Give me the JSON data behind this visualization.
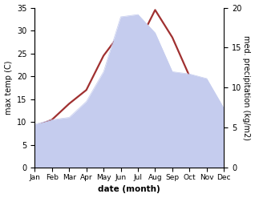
{
  "months": [
    "Jan",
    "Feb",
    "Mar",
    "Apr",
    "May",
    "Jun",
    "Jul",
    "Aug",
    "Sep",
    "Oct",
    "Nov",
    "Dec"
  ],
  "month_x": [
    1,
    2,
    3,
    4,
    5,
    6,
    7,
    8,
    9,
    10,
    11,
    12
  ],
  "temp": [
    9.0,
    10.5,
    14.0,
    17.0,
    24.5,
    29.5,
    27.0,
    34.5,
    28.5,
    20.0,
    12.0,
    8.0
  ],
  "precip": [
    9.5,
    10.5,
    11.0,
    14.5,
    21.0,
    33.0,
    33.5,
    29.5,
    21.0,
    20.5,
    19.5,
    13.0
  ],
  "temp_color": "#a03030",
  "precip_fill_color": "#c5ccee",
  "precip_edge_color": "#c5ccee",
  "left_ylabel": "max temp (C)",
  "right_ylabel": "med. precipitation (kg/m2)",
  "xlabel": "date (month)",
  "left_ylim": [
    0,
    35
  ],
  "right_ylim": [
    0,
    35
  ],
  "left_yticks": [
    0,
    5,
    10,
    15,
    20,
    25,
    30,
    35
  ],
  "right_yticks": [
    0,
    5,
    10,
    15,
    20
  ],
  "right_yticklabels": [
    "0",
    "5",
    "10",
    "15",
    "20"
  ],
  "background_color": "#ffffff",
  "temp_linewidth": 1.6
}
